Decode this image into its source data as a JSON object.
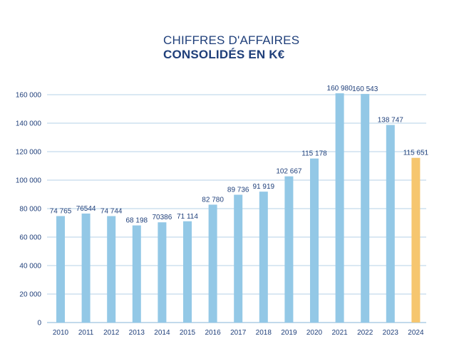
{
  "chart_data": {
    "type": "bar",
    "title_line1": "CHIFFRES D'AFFAIRES",
    "title_line2": "CONSOLIDÉS EN K€",
    "categories": [
      "2010",
      "2011",
      "2012",
      "2013",
      "2014",
      "2015",
      "2016",
      "2017",
      "2018",
      "2019",
      "2020",
      "2021",
      "2022",
      "2023",
      "2024"
    ],
    "values": [
      74765,
      76544,
      74744,
      68198,
      70386,
      71114,
      82780,
      89736,
      91919,
      102667,
      115178,
      160980,
      160543,
      138747,
      115651
    ],
    "value_labels": [
      "74 765",
      "76544",
      "74 744",
      "68 198",
      "70386",
      "71 114",
      "82 780",
      "89 736",
      "91 919",
      "102 667",
      "115 178",
      "160 980",
      "160 543",
      "138 747",
      "115 651"
    ],
    "ylim": [
      0,
      160000
    ],
    "yticks": [
      0,
      20000,
      40000,
      60000,
      80000,
      100000,
      120000,
      140000,
      160000
    ],
    "ytick_labels": [
      "0",
      "20 000",
      "40 000",
      "60 000",
      "80 000",
      "100 000",
      "120 000",
      "140 000",
      "160 000"
    ],
    "xlabel": "",
    "ylabel": "",
    "grid": true,
    "colors": {
      "bar": "#93c8e6",
      "highlight_bar": "#f6c66f",
      "grid": "#9ec3df",
      "text": "#1f3f7a"
    },
    "highlight_category": "2024"
  }
}
